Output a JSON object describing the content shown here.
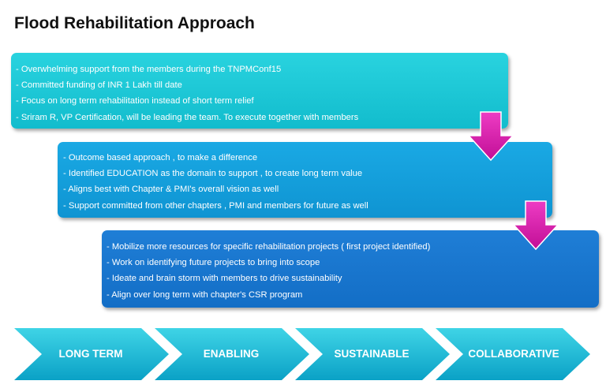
{
  "title": "Flood Rehabilitation Approach",
  "boxes": [
    {
      "lines": [
        "-  Overwhelming support from the members during the TNPMConf15",
        " - Committed funding of INR 1 Lakh till date",
        "- Focus on long term rehabilitation instead of short term relief",
        "-  Sriram R, VP Certification, will be leading the team.  To execute together with members"
      ]
    },
    {
      "lines": [
        "- Outcome based approach ,   to make a difference",
        "- Identified EDUCATION  as the domain to support , to create long term value",
        "- Aligns best with Chapter & PMI's overall vision as well",
        "- Support committed from other chapters , PMI and members for future as well"
      ]
    },
    {
      "lines": [
        "- Mobilize more resources for specific rehabilitation projects ( first project identified)",
        "- Work on identifying future projects to bring into scope",
        "- Ideate and brain storm with members to drive sustainability",
        "- Align over long term with chapter's CSR program"
      ]
    }
  ],
  "chevrons": [
    "LONG TERM",
    "ENABLING",
    "SUSTAINABLE",
    "COLLABORATIVE"
  ],
  "colors": {
    "box1": "#17c4d4",
    "box2": "#139fdb",
    "box3": "#1876cd",
    "arrow": "#d61aa8",
    "chevron_top": "#35cfe3",
    "chevron_bottom": "#0ea6c9"
  }
}
